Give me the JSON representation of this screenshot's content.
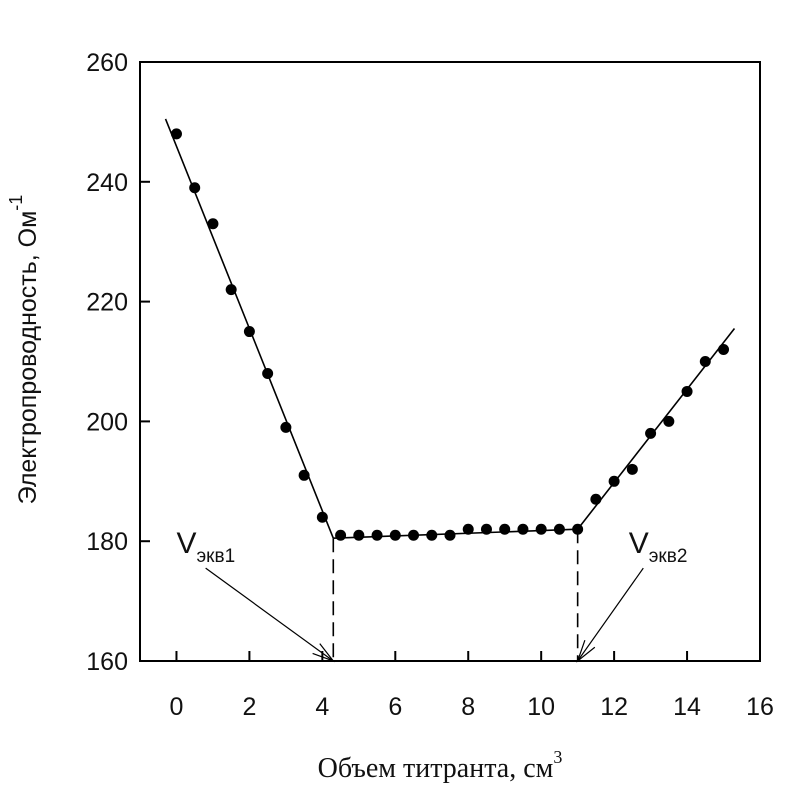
{
  "chart_data": {
    "type": "scatter",
    "title": "",
    "xlabel": "Объем титранта, см",
    "xlabel_sup": "3",
    "ylabel": "Электропроводность, Ом",
    "ylabel_sup": "-1",
    "xlim": [
      -1,
      16
    ],
    "ylim": [
      160,
      260
    ],
    "x_ticks": [
      0,
      2,
      4,
      6,
      8,
      10,
      12,
      14,
      16
    ],
    "y_ticks": [
      160,
      180,
      200,
      220,
      240,
      260
    ],
    "grid": false,
    "points": [
      {
        "x": 0,
        "y": 248
      },
      {
        "x": 0.5,
        "y": 239
      },
      {
        "x": 1,
        "y": 233
      },
      {
        "x": 1.5,
        "y": 222
      },
      {
        "x": 2,
        "y": 215
      },
      {
        "x": 2.5,
        "y": 208
      },
      {
        "x": 3,
        "y": 199
      },
      {
        "x": 3.5,
        "y": 191
      },
      {
        "x": 4,
        "y": 184
      },
      {
        "x": 4.5,
        "y": 181
      },
      {
        "x": 5,
        "y": 181
      },
      {
        "x": 5.5,
        "y": 181
      },
      {
        "x": 6,
        "y": 181
      },
      {
        "x": 6.5,
        "y": 181
      },
      {
        "x": 7,
        "y": 181
      },
      {
        "x": 7.5,
        "y": 181
      },
      {
        "x": 8,
        "y": 182
      },
      {
        "x": 8.5,
        "y": 182
      },
      {
        "x": 9,
        "y": 182
      },
      {
        "x": 9.5,
        "y": 182
      },
      {
        "x": 10,
        "y": 182
      },
      {
        "x": 10.5,
        "y": 182
      },
      {
        "x": 11,
        "y": 182
      },
      {
        "x": 11.5,
        "y": 187
      },
      {
        "x": 12,
        "y": 190
      },
      {
        "x": 12.5,
        "y": 192
      },
      {
        "x": 13,
        "y": 198
      },
      {
        "x": 13.5,
        "y": 200
      },
      {
        "x": 14,
        "y": 205
      },
      {
        "x": 14.5,
        "y": 210
      },
      {
        "x": 15,
        "y": 212
      }
    ],
    "fit_lines": [
      {
        "from": [
          -0.3,
          250.5
        ],
        "to": [
          4.3,
          180.5
        ]
      },
      {
        "from": [
          4.3,
          180.5
        ],
        "to": [
          11.0,
          182.0
        ]
      },
      {
        "from": [
          11.0,
          182.0
        ],
        "to": [
          15.3,
          215.5
        ]
      }
    ],
    "equivalence_points": [
      {
        "label": "V",
        "sub": "экв1",
        "x": 4.3,
        "y": 180.5,
        "label_at": [
          0,
          178
        ],
        "arrow_from": [
          0.8,
          175.5
        ]
      },
      {
        "label": "V",
        "sub": "экв2",
        "x": 11.0,
        "y": 182.0,
        "label_at": [
          12.4,
          178
        ],
        "arrow_from": [
          12.8,
          175.5
        ]
      }
    ]
  }
}
